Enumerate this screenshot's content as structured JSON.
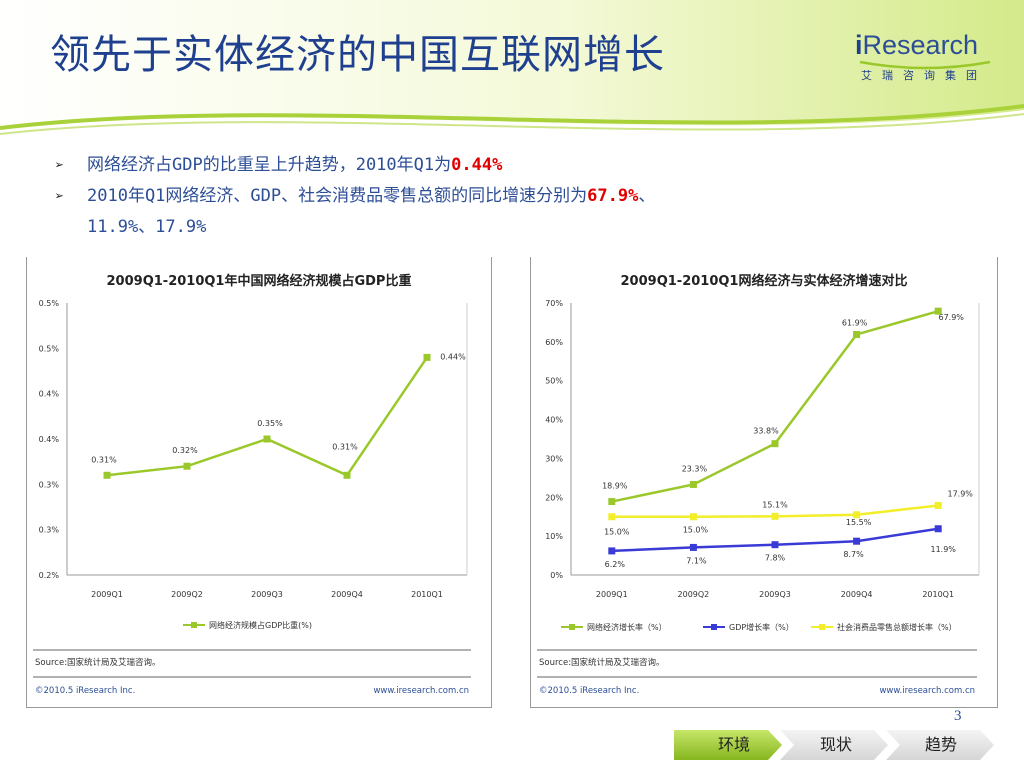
{
  "slide": {
    "title": "领先于实体经济的中国互联网增长",
    "page_number": "3",
    "logo": {
      "brand_i": "i",
      "brand_rest": "Research",
      "subtitle": "艾瑞咨询集团"
    },
    "bullets": [
      {
        "text": "网络经济占GDP的比重呈上升趋势，2010年Q1为",
        "highlight": "0.44%",
        "after": ""
      },
      {
        "text": "2010年Q1网络经济、GDP、社会消费品零售总额的同比增速分别为",
        "highlight": "67.9%",
        "after": "、",
        "line2": "11.9%、17.9%"
      }
    ],
    "nav": {
      "items": [
        "环境",
        "现状",
        "趋势"
      ],
      "active": 0
    },
    "colors": {
      "title": "#1f3f8f",
      "accent_green": "#9ac82a",
      "highlight_red": "#e00000"
    }
  },
  "chart_data": [
    {
      "type": "line",
      "title": "2009Q1-2010Q1年中国网络经济规模占GDP比重",
      "categories": [
        "2009Q1",
        "2009Q2",
        "2009Q3",
        "2009Q4",
        "2010Q1"
      ],
      "y_tick_labels": [
        "0.5%",
        "0.5%",
        "0.4%",
        "0.4%",
        "0.3%",
        "0.3%",
        "0.2%"
      ],
      "ylim": [
        0.2,
        0.5
      ],
      "grid": false,
      "legend_position": "bottom",
      "series": [
        {
          "name": "网络经济规模占GDP比重(%)",
          "color": "#9ac82a",
          "values": [
            0.31,
            0.32,
            0.35,
            0.31,
            0.44
          ],
          "labels": [
            "0.31%",
            "0.32%",
            "0.35%",
            "0.31%",
            "0.44%"
          ]
        }
      ],
      "source": "Source:国家统计局及艾瑞咨询。",
      "footer_left": "©2010.5 iResearch Inc.",
      "footer_right": "www.iresearch.com.cn"
    },
    {
      "type": "line",
      "title": "2009Q1-2010Q1网络经济与实体经济增速对比",
      "categories": [
        "2009Q1",
        "2009Q2",
        "2009Q3",
        "2009Q4",
        "2010Q1"
      ],
      "y_tick_labels": [
        "70%",
        "60%",
        "50%",
        "40%",
        "30%",
        "20%",
        "10%",
        "0%"
      ],
      "ylim": [
        0,
        70
      ],
      "grid": false,
      "legend_position": "bottom",
      "series": [
        {
          "name": "网络经济增长率（%）",
          "color": "#9ac82a",
          "values": [
            18.9,
            23.3,
            33.8,
            61.9,
            67.9
          ],
          "labels": [
            "18.9%",
            "23.3%",
            "33.8%",
            "61.9%",
            "67.9%"
          ]
        },
        {
          "name": "GDP增长率（%）",
          "color": "#3a3ad6",
          "values": [
            6.2,
            7.1,
            7.8,
            8.7,
            11.9
          ],
          "labels": [
            "6.2%",
            "7.1%",
            "7.8%",
            "8.7%",
            "11.9%"
          ]
        },
        {
          "name": "社会消费品零售总额增长率（%）",
          "color": "#f2ee2a",
          "values": [
            15.0,
            15.0,
            15.1,
            15.5,
            17.9
          ],
          "labels": [
            "15.0%",
            "15.0%",
            "15.1%",
            "15.5%",
            "17.9%"
          ]
        }
      ],
      "source": "Source:国家统计局及艾瑞咨询。",
      "footer_left": "©2010.5 iResearch Inc.",
      "footer_right": "www.iresearch.com.cn"
    }
  ]
}
